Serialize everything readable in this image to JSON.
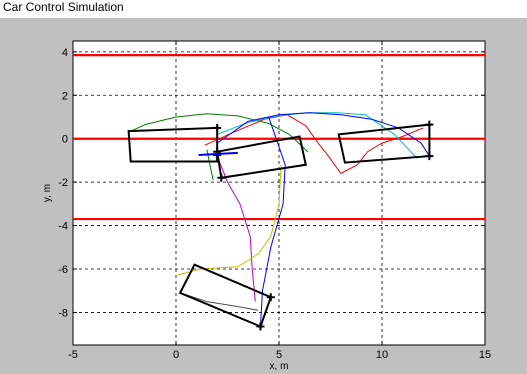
{
  "window": {
    "title": "Car Control Simulation"
  },
  "chart_data": {
    "type": "line",
    "title": "",
    "xlabel": "x, m",
    "ylabel": "y, m",
    "xlim": [
      -5,
      15
    ],
    "ylim": [
      -9.5,
      4.5
    ],
    "xticks": [
      -5,
      0,
      5,
      10,
      15
    ],
    "yticks": [
      -8,
      -6,
      -4,
      -2,
      0,
      2,
      4
    ],
    "grid": true,
    "colors": {
      "background": "#c0c0c0",
      "plot_bg": "#ffffff",
      "lanes": "#ff0000",
      "vehicle": "#000000",
      "heading": "#0000ff",
      "traj_green": "#008000",
      "traj_red": "#ff0000",
      "traj_cyan": "#00bfbf",
      "traj_blue": "#0000ff",
      "traj_magenta": "#bf00bf",
      "traj_yellow": "#bfbf00",
      "traj_gray": "#505050"
    },
    "lanes": [
      3.85,
      0,
      -3.7
    ],
    "vehicles": [
      {
        "corners": [
          [
            -2.3,
            0.35
          ],
          [
            2.0,
            0.5
          ],
          [
            2.0,
            -1.05
          ],
          [
            -2.2,
            -1.05
          ]
        ],
        "markers": [
          [
            2.0,
            0.5
          ],
          [
            2.0,
            -0.75
          ]
        ]
      },
      {
        "corners": [
          [
            2.0,
            -0.6
          ],
          [
            6.0,
            0.1
          ],
          [
            6.3,
            -1.2
          ],
          [
            2.2,
            -1.8
          ]
        ],
        "markers": [
          [
            2.0,
            -0.6
          ],
          [
            2.2,
            -1.8
          ]
        ]
      },
      {
        "corners": [
          [
            7.9,
            0.2
          ],
          [
            12.3,
            0.65
          ],
          [
            12.3,
            -0.8
          ],
          [
            8.2,
            -1.1
          ]
        ],
        "markers": [
          [
            12.3,
            0.65
          ],
          [
            12.3,
            -0.8
          ]
        ]
      },
      {
        "corners": [
          [
            0.9,
            -5.8
          ],
          [
            4.6,
            -7.3
          ],
          [
            4.1,
            -8.65
          ],
          [
            0.2,
            -7.1
          ]
        ],
        "markers": [
          [
            4.6,
            -7.3
          ],
          [
            4.1,
            -8.65
          ]
        ]
      }
    ],
    "heading_lines": [
      {
        "x": [
          1.1,
          3.0
        ],
        "y": [
          -0.75,
          -0.65
        ]
      }
    ],
    "series": [
      {
        "color": "traj_green",
        "x": [
          -2.3,
          -1.5,
          0.0,
          1.5,
          3.0,
          4.5,
          5.5,
          6.4
        ],
        "y": [
          0.3,
          0.65,
          1.0,
          1.15,
          1.05,
          0.7,
          0.2,
          -0.6
        ]
      },
      {
        "color": "traj_red",
        "x": [
          1.4,
          2.8,
          4.3,
          5.4,
          6.3,
          6.9,
          7.4,
          8.0,
          8.8,
          9.3,
          10.0,
          11.0,
          12.0
        ],
        "y": [
          -0.3,
          0.3,
          0.9,
          1.1,
          0.6,
          -0.2,
          -0.8,
          -1.6,
          -1.2,
          -0.6,
          -0.2,
          0.1,
          0.5
        ]
      },
      {
        "color": "traj_cyan",
        "x": [
          2.0,
          3.5,
          5.0,
          6.3,
          7.8,
          9.2,
          10.6,
          11.7
        ],
        "y": [
          0.2,
          0.75,
          1.05,
          1.2,
          1.2,
          1.1,
          0.2,
          -0.9
        ]
      },
      {
        "color": "traj_blue",
        "x": [
          2.0,
          3.5,
          5.0,
          6.5,
          8.0,
          9.5,
          10.8,
          11.9,
          12.3
        ],
        "y": [
          -0.2,
          0.8,
          1.1,
          1.2,
          1.1,
          0.9,
          0.5,
          -0.2,
          -0.8
        ]
      },
      {
        "color": "traj_blue",
        "x": [
          4.5,
          5.3,
          5.2,
          4.6,
          4.2,
          4.1
        ],
        "y": [
          1.0,
          -1.2,
          -3.0,
          -5.0,
          -7.0,
          -8.6
        ]
      },
      {
        "color": "traj_magenta",
        "x": [
          2.0,
          2.5,
          3.1,
          3.6,
          3.7,
          3.85
        ],
        "y": [
          -0.8,
          -2.0,
          -3.0,
          -4.5,
          -6.0,
          -7.5
        ]
      },
      {
        "color": "traj_yellow",
        "x": [
          5.1,
          5.0,
          4.6,
          4.0,
          3.0,
          1.2,
          0.0
        ],
        "y": [
          -1.2,
          -3.0,
          -4.5,
          -5.3,
          -5.9,
          -6.0,
          -6.3
        ]
      },
      {
        "color": "traj_gray",
        "x": [
          0.2,
          1.5,
          2.8,
          4.0
        ],
        "y": [
          -7.1,
          -7.5,
          -7.7,
          -7.9
        ]
      },
      {
        "color": "traj_green",
        "x": [
          1.5,
          1.6,
          1.8
        ],
        "y": [
          -0.5,
          -1.0,
          -1.9
        ]
      }
    ]
  }
}
